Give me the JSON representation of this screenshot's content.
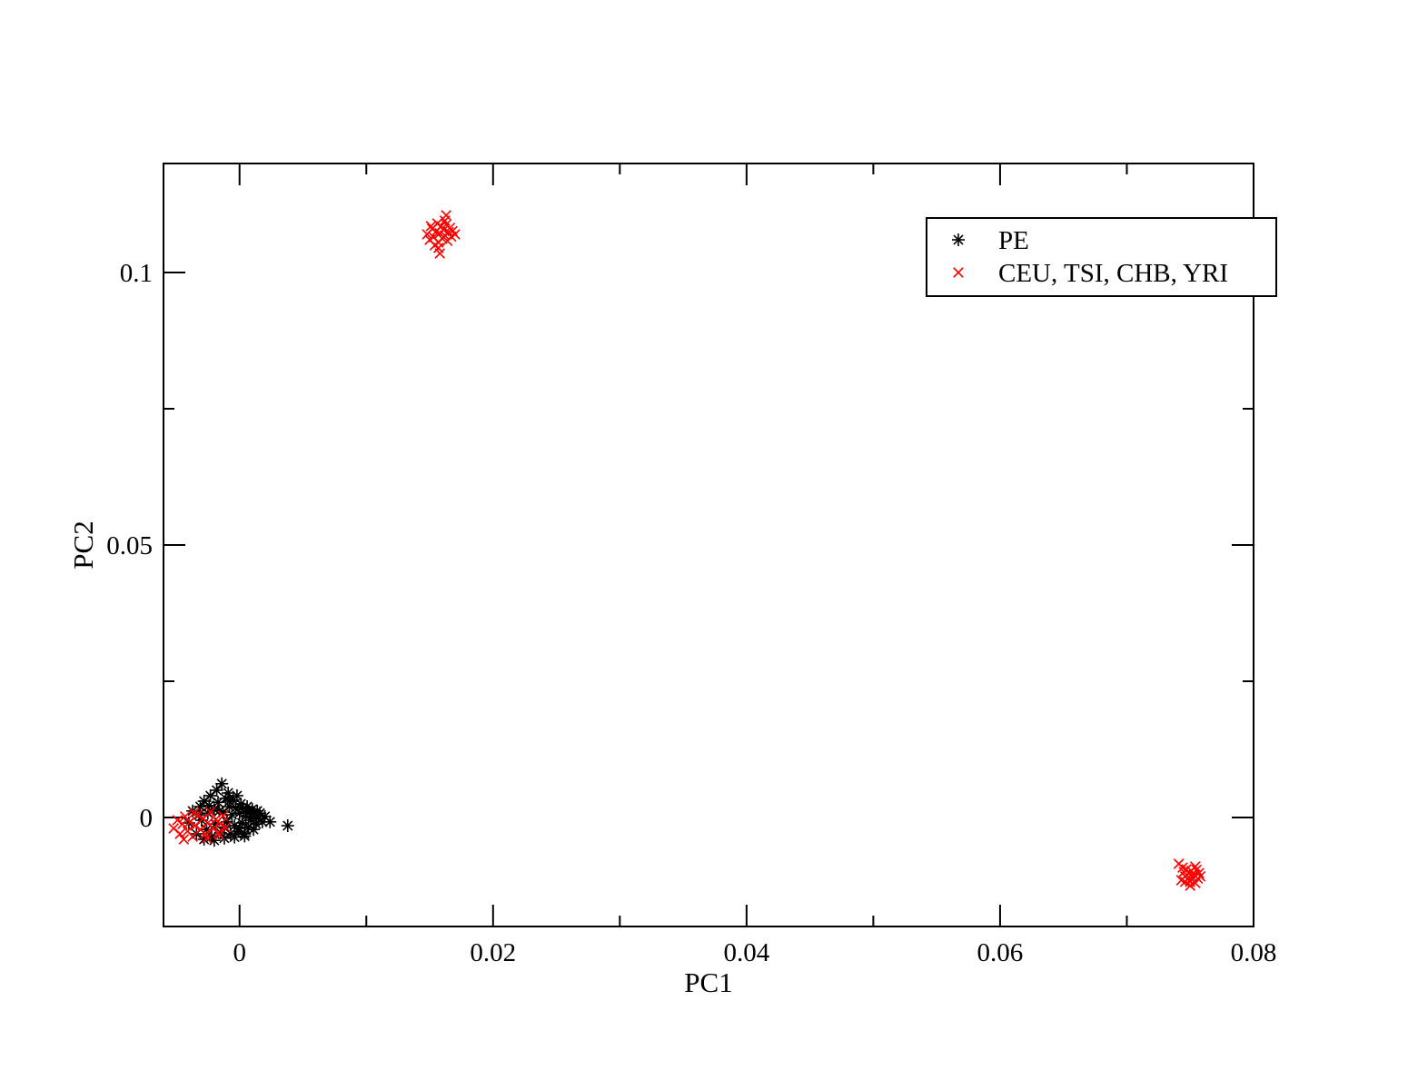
{
  "chart_data": {
    "type": "scatter",
    "title": "",
    "xlabel": "PC1",
    "ylabel": "PC2",
    "xlim": [
      -0.006,
      0.08
    ],
    "ylim": [
      -0.02,
      0.12
    ],
    "x_ticks": [
      {
        "value": 0,
        "label": "0"
      },
      {
        "value": 0.02,
        "label": "0.02"
      },
      {
        "value": 0.04,
        "label": "0.04"
      },
      {
        "value": 0.06,
        "label": "0.06"
      },
      {
        "value": 0.08,
        "label": "0.08"
      }
    ],
    "x_minor_ticks": [
      0.01,
      0.03,
      0.05,
      0.07
    ],
    "y_ticks": [
      {
        "value": 0,
        "label": "0"
      },
      {
        "value": 0.05,
        "label": "0.05"
      },
      {
        "value": 0.1,
        "label": "0.1"
      }
    ],
    "y_minor_ticks": [
      0.025,
      0.075
    ],
    "grid": false,
    "legend_position": "top-right",
    "series": [
      {
        "name": "PE",
        "marker": "asterisk",
        "color": "#000000",
        "points": [
          [
            -0.004,
            -0.001
          ],
          [
            -0.0037,
            0.0012
          ],
          [
            -0.0034,
            -0.003
          ],
          [
            -0.0031,
            0.002
          ],
          [
            -0.003,
            -0.0005
          ],
          [
            -0.0028,
            0.003
          ],
          [
            -0.0026,
            -0.0022
          ],
          [
            -0.0025,
            0.0008
          ],
          [
            -0.0023,
            0.004
          ],
          [
            -0.0022,
            -0.0035
          ],
          [
            -0.002,
            0.0015
          ],
          [
            -0.0019,
            -0.0012
          ],
          [
            -0.0018,
            0.005
          ],
          [
            -0.0017,
            0.0028
          ],
          [
            -0.0015,
            -0.0028
          ],
          [
            -0.0014,
            0.0062
          ],
          [
            -0.0013,
            0.001
          ],
          [
            -0.0012,
            -0.0018
          ],
          [
            -0.0011,
            0.0035
          ],
          [
            -0.001,
            -0.0008
          ],
          [
            -0.0009,
            0.0045
          ],
          [
            -0.0008,
            0.002
          ],
          [
            -0.0007,
            -0.003
          ],
          [
            -0.0006,
            0.0005
          ],
          [
            -0.0005,
            0.0032
          ],
          [
            -0.0004,
            -0.0015
          ],
          [
            -0.0003,
            0.0018
          ],
          [
            -0.0002,
            0.004
          ],
          [
            -0.0001,
            -0.0025
          ],
          [
            0.0,
            0.0008
          ],
          [
            0.0001,
            0.0025
          ],
          [
            0.0002,
            -0.001
          ],
          [
            0.0003,
            0.0015
          ],
          [
            0.0004,
            -0.003
          ],
          [
            0.0005,
            0.0002
          ],
          [
            0.0006,
            0.002
          ],
          [
            0.0007,
            -0.0018
          ],
          [
            0.0008,
            0.001
          ],
          [
            0.0009,
            -0.0005
          ],
          [
            0.001,
            0.0015
          ],
          [
            0.0011,
            -0.0022
          ],
          [
            0.0012,
            0.0005
          ],
          [
            0.0013,
            -0.0012
          ],
          [
            0.0014,
            0.0012
          ],
          [
            0.0015,
            -0.0002
          ],
          [
            0.0016,
            0.0008
          ],
          [
            0.0018,
            -0.0008
          ],
          [
            0.002,
            0.0002
          ],
          [
            0.0024,
            -0.0008
          ],
          [
            0.0038,
            -0.0015
          ],
          [
            -0.0028,
            -0.004
          ],
          [
            -0.002,
            -0.0042
          ],
          [
            -0.0012,
            -0.0038
          ],
          [
            -0.0004,
            -0.0036
          ],
          [
            0.0004,
            -0.0034
          ],
          [
            -0.0032,
            0.0005
          ],
          [
            -0.0024,
            0.0022
          ],
          [
            -0.0016,
            0.0012
          ],
          [
            -0.0008,
            0.003
          ],
          [
            0.0,
            -0.002
          ]
        ]
      },
      {
        "name": "CEU, TSI, CHB, YRI",
        "marker": "x",
        "color": "#ff0000",
        "points": [
          [
            -0.0052,
            -0.002
          ],
          [
            -0.0049,
            -0.0005
          ],
          [
            -0.0047,
            -0.003
          ],
          [
            -0.0045,
            -0.0012
          ],
          [
            -0.0043,
            0.0002
          ],
          [
            -0.0041,
            -0.0025
          ],
          [
            -0.0039,
            -0.0008
          ],
          [
            -0.0037,
            -0.0035
          ],
          [
            -0.0035,
            -0.0015
          ],
          [
            -0.0033,
            0.0005
          ],
          [
            -0.0031,
            -0.0022
          ],
          [
            -0.0029,
            -0.0002
          ],
          [
            -0.0027,
            -0.003
          ],
          [
            -0.0025,
            -0.001
          ],
          [
            -0.0023,
            0.001
          ],
          [
            -0.0021,
            -0.002
          ],
          [
            -0.0019,
            -0.0004
          ],
          [
            -0.0017,
            -0.0028
          ],
          [
            -0.0015,
            -0.0012
          ],
          [
            -0.0013,
            0.0003
          ],
          [
            -0.0011,
            -0.0018
          ],
          [
            -0.0044,
            -0.004
          ],
          [
            -0.0036,
            0.0008
          ],
          [
            -0.0026,
            -0.0038
          ],
          [
            -0.0016,
            -0.0032
          ],
          [
            0.0148,
            0.107
          ],
          [
            0.015,
            0.106
          ],
          [
            0.0152,
            0.108
          ],
          [
            0.0153,
            0.1065
          ],
          [
            0.0155,
            0.1075
          ],
          [
            0.0156,
            0.109
          ],
          [
            0.0157,
            0.1055
          ],
          [
            0.0158,
            0.1072
          ],
          [
            0.0159,
            0.1085
          ],
          [
            0.016,
            0.1062
          ],
          [
            0.0161,
            0.1078
          ],
          [
            0.0162,
            0.1068
          ],
          [
            0.0163,
            0.1088
          ],
          [
            0.0164,
            0.1058
          ],
          [
            0.0165,
            0.1074
          ],
          [
            0.0166,
            0.1082
          ],
          [
            0.0167,
            0.1066
          ],
          [
            0.0168,
            0.1076
          ],
          [
            0.0163,
            0.1105
          ],
          [
            0.0158,
            0.1035
          ],
          [
            0.0154,
            0.105
          ],
          [
            0.017,
            0.107
          ],
          [
            0.0151,
            0.1085
          ],
          [
            0.0162,
            0.1095
          ],
          [
            0.0157,
            0.1045
          ],
          [
            0.0741,
            -0.0085
          ],
          [
            0.0743,
            -0.0115
          ],
          [
            0.0745,
            -0.01
          ],
          [
            0.0746,
            -0.0108
          ],
          [
            0.0747,
            -0.0095
          ],
          [
            0.0748,
            -0.0112
          ],
          [
            0.0749,
            -0.0102
          ],
          [
            0.075,
            -0.0118
          ],
          [
            0.0751,
            -0.0098
          ],
          [
            0.0752,
            -0.011
          ],
          [
            0.0753,
            -0.0105
          ],
          [
            0.0754,
            -0.012
          ],
          [
            0.0755,
            -0.0096
          ],
          [
            0.0756,
            -0.0112
          ],
          [
            0.0757,
            -0.0102
          ],
          [
            0.0758,
            -0.0108
          ],
          [
            0.0744,
            -0.0092
          ],
          [
            0.075,
            -0.0125
          ],
          [
            0.0746,
            -0.0118
          ],
          [
            0.0754,
            -0.009
          ]
        ]
      }
    ]
  }
}
